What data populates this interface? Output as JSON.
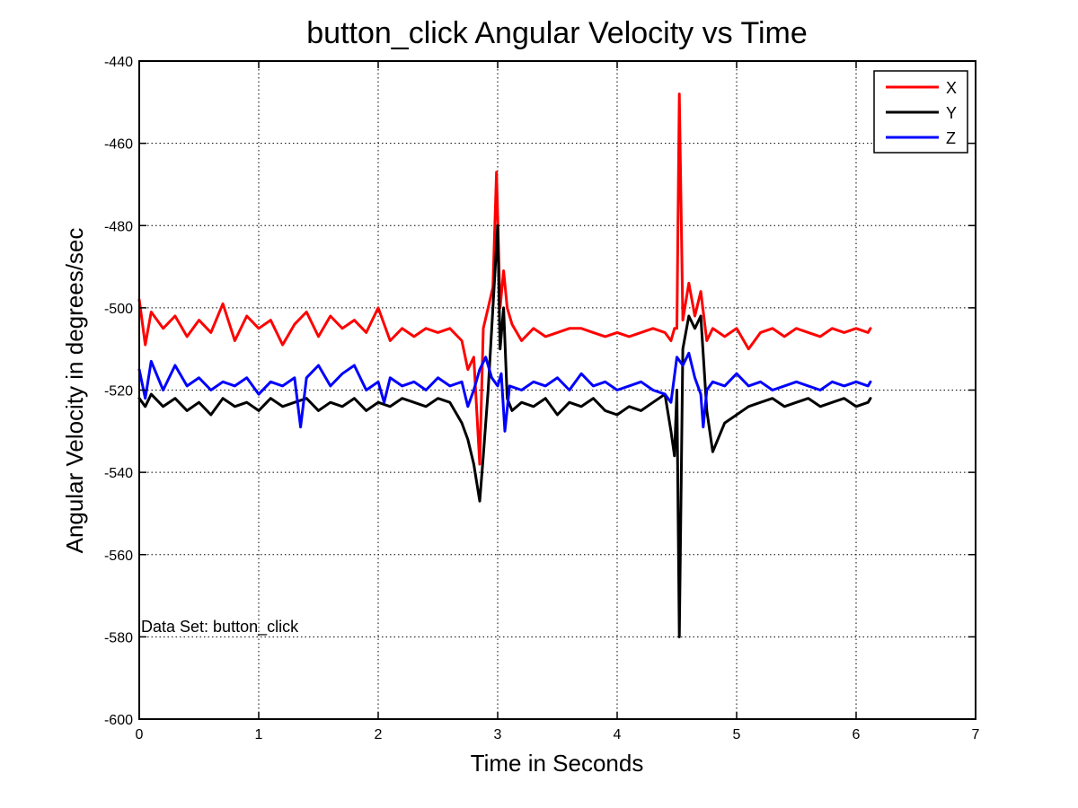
{
  "chart_data": {
    "type": "line",
    "title": "button_click Angular Velocity vs Time",
    "xlabel": "Time in Seconds",
    "ylabel": "Angular Velocity in degrees/sec",
    "xlim": [
      0,
      7
    ],
    "ylim": [
      -600,
      -440
    ],
    "xticks": [
      0,
      1,
      2,
      3,
      4,
      5,
      6,
      7
    ],
    "yticks": [
      -600,
      -580,
      -560,
      -540,
      -520,
      -500,
      -480,
      -460,
      -440
    ],
    "grid": true,
    "legend_position": "top-right",
    "annotation": "Data Set: button_click",
    "series": [
      {
        "name": "X",
        "color": "#ff0000",
        "x": [
          0,
          0.05,
          0.1,
          0.2,
          0.3,
          0.4,
          0.5,
          0.6,
          0.7,
          0.8,
          0.9,
          1.0,
          1.1,
          1.2,
          1.3,
          1.4,
          1.5,
          1.6,
          1.7,
          1.8,
          1.9,
          2.0,
          2.1,
          2.2,
          2.3,
          2.4,
          2.5,
          2.6,
          2.7,
          2.75,
          2.8,
          2.85,
          2.88,
          2.92,
          2.96,
          2.99,
          3.02,
          3.05,
          3.08,
          3.12,
          3.2,
          3.3,
          3.4,
          3.5,
          3.6,
          3.7,
          3.8,
          3.9,
          4.0,
          4.1,
          4.2,
          4.3,
          4.4,
          4.45,
          4.48,
          4.5,
          4.52,
          4.55,
          4.6,
          4.65,
          4.7,
          4.75,
          4.8,
          4.9,
          5.0,
          5.1,
          5.2,
          5.3,
          5.4,
          5.5,
          5.6,
          5.7,
          5.8,
          5.9,
          6.0,
          6.1,
          6.12
        ],
        "y": [
          -498,
          -509,
          -501,
          -505,
          -502,
          -507,
          -503,
          -506,
          -499,
          -508,
          -502,
          -505,
          -503,
          -509,
          -504,
          -501,
          -507,
          -502,
          -505,
          -503,
          -506,
          -500,
          -508,
          -505,
          -507,
          -505,
          -506,
          -505,
          -508,
          -515,
          -512,
          -538,
          -505,
          -500,
          -495,
          -467,
          -500,
          -491,
          -500,
          -504,
          -508,
          -505,
          -507,
          -506,
          -505,
          -505,
          -506,
          -507,
          -506,
          -507,
          -506,
          -505,
          -506,
          -508,
          -505,
          -505,
          -448,
          -503,
          -494,
          -502,
          -496,
          -508,
          -505,
          -507,
          -505,
          -510,
          -506,
          -505,
          -507,
          -505,
          -506,
          -507,
          -505,
          -506,
          -505,
          -506,
          -505
        ]
      },
      {
        "name": "Y",
        "color": "#000000",
        "x": [
          0,
          0.05,
          0.1,
          0.2,
          0.3,
          0.4,
          0.5,
          0.6,
          0.7,
          0.8,
          0.9,
          1.0,
          1.1,
          1.2,
          1.3,
          1.4,
          1.5,
          1.6,
          1.7,
          1.8,
          1.9,
          2.0,
          2.1,
          2.2,
          2.3,
          2.4,
          2.5,
          2.6,
          2.7,
          2.75,
          2.8,
          2.85,
          2.88,
          2.92,
          2.96,
          3.0,
          3.02,
          3.05,
          3.08,
          3.12,
          3.2,
          3.3,
          3.4,
          3.5,
          3.6,
          3.7,
          3.8,
          3.9,
          4.0,
          4.1,
          4.2,
          4.3,
          4.4,
          4.45,
          4.48,
          4.5,
          4.52,
          4.55,
          4.6,
          4.65,
          4.7,
          4.75,
          4.8,
          4.9,
          5.0,
          5.1,
          5.2,
          5.3,
          5.4,
          5.5,
          5.6,
          5.7,
          5.8,
          5.9,
          6.0,
          6.1,
          6.12
        ],
        "y": [
          -522,
          -524,
          -521,
          -524,
          -522,
          -525,
          -523,
          -526,
          -522,
          -524,
          -523,
          -525,
          -522,
          -524,
          -523,
          -522,
          -525,
          -523,
          -524,
          -522,
          -525,
          -523,
          -524,
          -522,
          -523,
          -524,
          -522,
          -523,
          -528,
          -532,
          -538,
          -547,
          -536,
          -520,
          -500,
          -480,
          -510,
          -500,
          -522,
          -525,
          -523,
          -524,
          -522,
          -526,
          -523,
          -524,
          -522,
          -525,
          -526,
          -524,
          -525,
          -523,
          -521,
          -530,
          -536,
          -520,
          -580,
          -510,
          -502,
          -505,
          -502,
          -525,
          -535,
          -528,
          -526,
          -524,
          -523,
          -522,
          -524,
          -523,
          -522,
          -524,
          -523,
          -522,
          -524,
          -523,
          -522
        ]
      },
      {
        "name": "Z",
        "color": "#0000ff",
        "x": [
          0,
          0.05,
          0.1,
          0.2,
          0.3,
          0.4,
          0.5,
          0.6,
          0.7,
          0.8,
          0.9,
          1.0,
          1.1,
          1.2,
          1.3,
          1.35,
          1.4,
          1.5,
          1.6,
          1.7,
          1.8,
          1.9,
          2.0,
          2.05,
          2.1,
          2.2,
          2.3,
          2.4,
          2.5,
          2.6,
          2.7,
          2.75,
          2.8,
          2.85,
          2.9,
          2.95,
          3.0,
          3.03,
          3.06,
          3.1,
          3.2,
          3.3,
          3.4,
          3.5,
          3.6,
          3.7,
          3.8,
          3.9,
          4.0,
          4.1,
          4.2,
          4.3,
          4.4,
          4.45,
          4.5,
          4.55,
          4.6,
          4.65,
          4.7,
          4.72,
          4.75,
          4.8,
          4.9,
          5.0,
          5.1,
          5.2,
          5.3,
          5.4,
          5.5,
          5.6,
          5.7,
          5.8,
          5.9,
          6.0,
          6.1,
          6.12
        ],
        "y": [
          -515,
          -522,
          -513,
          -520,
          -514,
          -519,
          -517,
          -520,
          -518,
          -519,
          -517,
          -521,
          -518,
          -519,
          -517,
          -529,
          -517,
          -514,
          -519,
          -516,
          -514,
          -520,
          -518,
          -523,
          -517,
          -519,
          -518,
          -520,
          -517,
          -519,
          -518,
          -524,
          -520,
          -515,
          -512,
          -517,
          -519,
          -516,
          -530,
          -519,
          -520,
          -518,
          -519,
          -517,
          -520,
          -516,
          -519,
          -518,
          -520,
          -519,
          -518,
          -520,
          -521,
          -523,
          -512,
          -514,
          -511,
          -517,
          -521,
          -529,
          -520,
          -518,
          -519,
          -516,
          -519,
          -518,
          -520,
          -519,
          -518,
          -519,
          -520,
          -518,
          -519,
          -518,
          -519,
          -518
        ]
      }
    ]
  }
}
